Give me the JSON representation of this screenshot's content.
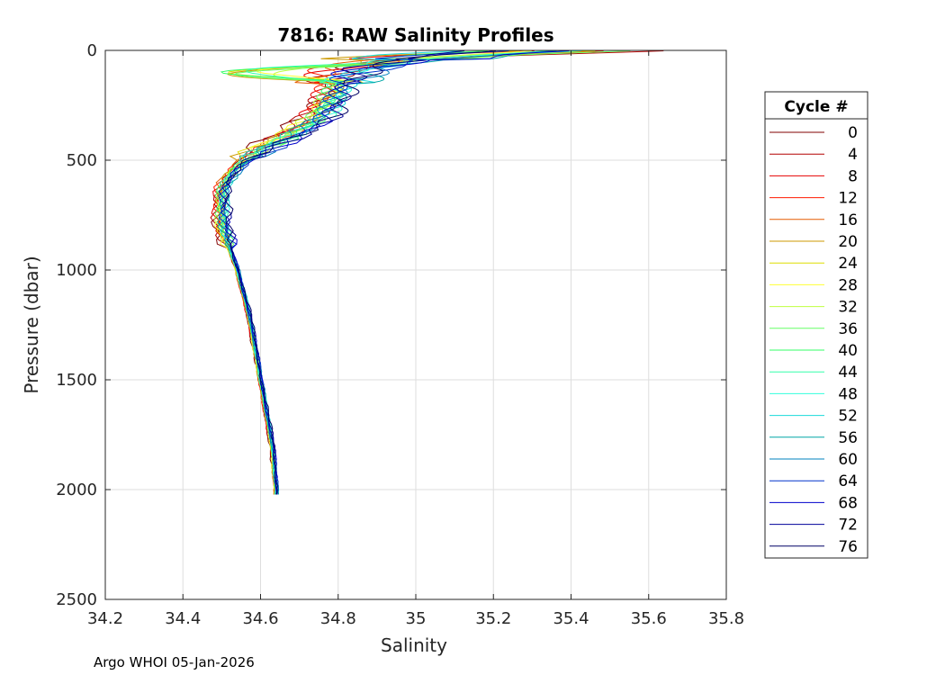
{
  "chart_data": {
    "type": "line",
    "title": "7816: RAW Salinity Profiles",
    "xlabel": "Salinity",
    "ylabel": "Pressure (dbar)",
    "xlim": [
      34.2,
      35.8
    ],
    "ylim": [
      0,
      2500
    ],
    "y_reversed": true,
    "grid": true,
    "x_ticks": [
      "34.2",
      "34.4",
      "34.6",
      "34.8",
      "35",
      "35.2",
      "35.4",
      "35.6",
      "35.8"
    ],
    "y_ticks": [
      "0",
      "500",
      "1000",
      "1500",
      "2000",
      "2500"
    ],
    "legend": {
      "title": "Cycle #",
      "placement": "right",
      "entries": [
        {
          "label": "0",
          "color": "#800000"
        },
        {
          "label": "4",
          "color": "#b30000"
        },
        {
          "label": "8",
          "color": "#e60000"
        },
        {
          "label": "12",
          "color": "#ff1a00"
        },
        {
          "label": "16",
          "color": "#e65c00"
        },
        {
          "label": "20",
          "color": "#cc9900"
        },
        {
          "label": "24",
          "color": "#dddd00"
        },
        {
          "label": "28",
          "color": "#ffff33"
        },
        {
          "label": "32",
          "color": "#bfff40"
        },
        {
          "label": "36",
          "color": "#66ff66"
        },
        {
          "label": "40",
          "color": "#33ff66"
        },
        {
          "label": "44",
          "color": "#33ffaa"
        },
        {
          "label": "48",
          "color": "#33ffdd"
        },
        {
          "label": "52",
          "color": "#1ad9d9"
        },
        {
          "label": "56",
          "color": "#00a6a6"
        },
        {
          "label": "60",
          "color": "#0080bf"
        },
        {
          "label": "64",
          "color": "#0033cc"
        },
        {
          "label": "68",
          "color": "#0000cc"
        },
        {
          "label": "72",
          "color": "#000099"
        },
        {
          "label": "76",
          "color": "#000066"
        }
      ]
    },
    "mean_profile": {
      "pressure": [
        0,
        20,
        50,
        80,
        100,
        130,
        160,
        200,
        250,
        300,
        350,
        400,
        450,
        500,
        550,
        600,
        650,
        700,
        750,
        800,
        850,
        900,
        950,
        1000,
        1100,
        1200,
        1300,
        1400,
        1500,
        1600,
        1700,
        1800,
        1900,
        2000,
        2030
      ],
      "salinity": [
        35.2,
        35.05,
        34.95,
        34.85,
        34.82,
        34.8,
        34.8,
        34.79,
        34.77,
        34.75,
        34.71,
        34.66,
        34.6,
        34.56,
        34.53,
        34.51,
        34.5,
        34.5,
        34.5,
        34.5,
        34.51,
        34.52,
        34.53,
        34.54,
        34.555,
        34.57,
        34.58,
        34.59,
        34.6,
        34.61,
        34.62,
        34.63,
        34.635,
        34.64,
        34.64
      ]
    }
  },
  "footer": "Argo WHOI 05-Jan-2026"
}
